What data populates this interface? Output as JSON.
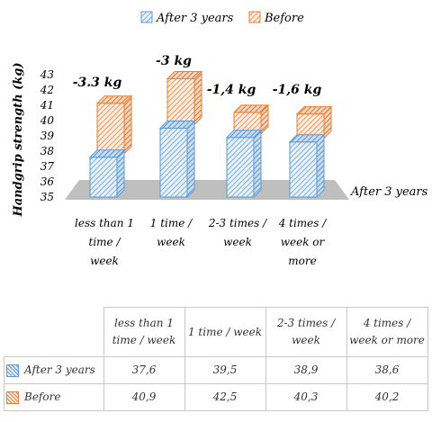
{
  "chart_data": {
    "type": "bar",
    "title": "",
    "ylabel": "Handgrip strength (kg)",
    "xlabel": "",
    "ylim": [
      35,
      43
    ],
    "yticks": [
      35,
      36,
      37,
      38,
      39,
      40,
      41,
      42,
      43
    ],
    "categories": [
      "less than 1 time / week",
      "1 time / week",
      "2-3 times / week",
      "4 times / week or more"
    ],
    "series": [
      {
        "name": "After 3 years",
        "values": [
          37.6,
          39.5,
          38.9,
          38.6
        ],
        "color": "#5b9bd5"
      },
      {
        "name": "Before",
        "values": [
          40.9,
          42.5,
          40.3,
          40.2
        ],
        "color": "#ed7d31"
      }
    ],
    "depth_axis_label": "After 3 years",
    "annotations": [
      "-3.3 kg",
      "-3 kg",
      "-1,4 kg",
      "-1,6 kg"
    ],
    "legend": {
      "placement": "top",
      "entries": [
        "After 3 years",
        "Before"
      ]
    },
    "grid": false,
    "floor_color": "#bfbfbf"
  },
  "table": {
    "columns": [
      "less than 1 time / week",
      "1 time / week",
      "2-3 times / week",
      "4 times / week or more"
    ],
    "rows": [
      {
        "name": "After 3 years",
        "values": [
          "37,6",
          "39,5",
          "38,9",
          "38,6"
        ]
      },
      {
        "name": "Before",
        "values": [
          "40,9",
          "42,5",
          "40,3",
          "40,2"
        ]
      }
    ]
  }
}
